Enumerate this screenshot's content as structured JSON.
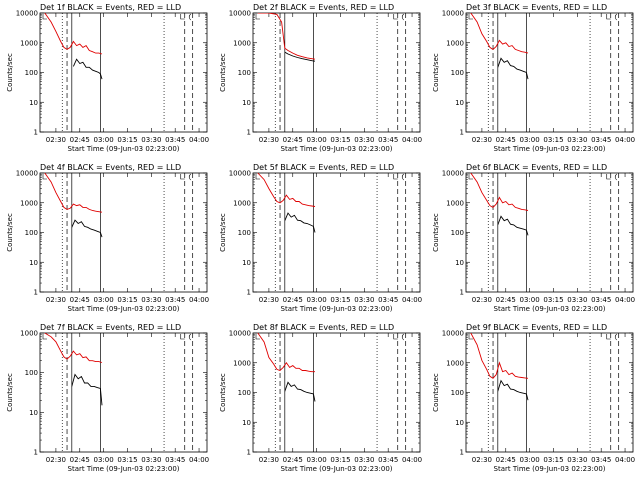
{
  "chart_data": [
    {
      "type": "line",
      "title": "Det 1f BLACK = Events, RED = LLD",
      "xlabel": "Start Time (09-Jun-03 02:23:00)",
      "ylabel": "Counts/sec",
      "yscale": "log",
      "ylim": [
        1,
        10000
      ],
      "xlim": [
        "02:20",
        "04:05"
      ],
      "x_ticks": [
        "02:30",
        "02:45",
        "03:00",
        "03:15",
        "03:30",
        "03:45",
        "04:00"
      ],
      "y_ticks": [
        "1",
        "10",
        "100",
        "1000",
        "10000"
      ],
      "markers": {
        "dotted": [
          "02:34",
          "03:38"
        ],
        "dashed": [
          "02:37",
          "03:51",
          "03:56"
        ],
        "solid": [
          "02:40",
          "02:58"
        ]
      },
      "series": [
        {
          "color": "#e00000",
          "x": [
            "02:23",
            "02:27",
            "02:30",
            "02:33",
            "02:35",
            "02:37",
            "02:39",
            "02:41",
            "02:43",
            "02:45",
            "02:47",
            "02:49",
            "02:51",
            "02:53",
            "02:55",
            "02:57",
            "02:59"
          ],
          "values": [
            10000,
            5000,
            2400,
            1100,
            700,
            600,
            700,
            1100,
            800,
            900,
            700,
            800,
            550,
            500,
            450,
            450,
            420
          ]
        },
        {
          "color": "#000000",
          "x": [
            "02:41",
            "02:43",
            "02:45",
            "02:47",
            "02:49",
            "02:51",
            "02:53",
            "02:55",
            "02:57",
            "02:58",
            "02:59"
          ],
          "values": [
            160,
            280,
            200,
            220,
            150,
            150,
            120,
            110,
            100,
            90,
            60
          ]
        }
      ]
    },
    {
      "type": "line",
      "title": "Det 2f BLACK = Events, RED = LLD",
      "xlabel": "Start Time (09-Jun-03 02:23:00)",
      "ylabel": "Counts/sec",
      "yscale": "log",
      "ylim": [
        1,
        10000
      ],
      "xlim": [
        "02:20",
        "04:05"
      ],
      "x_ticks": [
        "02:30",
        "02:45",
        "03:00",
        "03:15",
        "03:30",
        "03:45",
        "04:00"
      ],
      "y_ticks": [
        "1",
        "10",
        "100",
        "1000",
        "10000"
      ],
      "markers": {
        "dotted": [
          "02:34",
          "03:38"
        ],
        "dashed": [
          "02:37",
          "03:51",
          "03:56"
        ],
        "solid": [
          "02:40",
          "02:58"
        ]
      },
      "series": [
        {
          "color": "#e00000",
          "x": [
            "02:23",
            "02:30",
            "02:35",
            "02:38",
            "02:40",
            "02:42",
            "02:45",
            "02:48",
            "02:51",
            "02:54",
            "02:57",
            "02:59"
          ],
          "values": [
            10000,
            10000,
            9000,
            5000,
            650,
            550,
            450,
            380,
            340,
            310,
            290,
            280
          ]
        },
        {
          "color": "#000000",
          "x": [
            "02:40",
            "02:42",
            "02:45",
            "02:48",
            "02:51",
            "02:54",
            "02:57",
            "02:59"
          ],
          "values": [
            480,
            420,
            360,
            320,
            290,
            270,
            250,
            240
          ]
        }
      ]
    },
    {
      "type": "line",
      "title": "Det 3f BLACK = Events, RED = LLD",
      "xlabel": "Start Time (09-Jun-03 02:23:00)",
      "ylabel": "Counts/sec",
      "yscale": "log",
      "ylim": [
        1,
        10000
      ],
      "xlim": [
        "02:20",
        "04:05"
      ],
      "x_ticks": [
        "02:30",
        "02:45",
        "03:00",
        "03:15",
        "03:30",
        "03:45",
        "04:00"
      ],
      "y_ticks": [
        "1",
        "10",
        "100",
        "1000",
        "10000"
      ],
      "markers": {
        "dotted": [
          "02:34",
          "03:38"
        ],
        "dashed": [
          "02:37",
          "03:51",
          "03:56"
        ],
        "solid": [
          "02:40",
          "02:58"
        ]
      },
      "series": [
        {
          "color": "#e00000",
          "x": [
            "02:23",
            "02:27",
            "02:30",
            "02:33",
            "02:35",
            "02:37",
            "02:39",
            "02:41",
            "02:43",
            "02:45",
            "02:47",
            "02:49",
            "02:51",
            "02:53",
            "02:55",
            "02:57",
            "02:59"
          ],
          "values": [
            10000,
            5000,
            2000,
            1100,
            700,
            600,
            750,
            1200,
            900,
            1000,
            750,
            800,
            600,
            550,
            500,
            480,
            450
          ]
        },
        {
          "color": "#000000",
          "x": [
            "02:40",
            "02:42",
            "02:44",
            "02:46",
            "02:48",
            "02:50",
            "02:52",
            "02:54",
            "02:56",
            "02:58",
            "02:59"
          ],
          "values": [
            150,
            300,
            220,
            250,
            170,
            160,
            130,
            120,
            110,
            100,
            60
          ]
        }
      ]
    },
    {
      "type": "line",
      "title": "Det 4f BLACK = Events, RED = LLD",
      "xlabel": "Start Time (09-Jun-03 02:23:00)",
      "ylabel": "Counts/sec",
      "yscale": "log",
      "ylim": [
        1,
        10000
      ],
      "xlim": [
        "02:20",
        "04:05"
      ],
      "x_ticks": [
        "02:30",
        "02:45",
        "03:00",
        "03:15",
        "03:30",
        "03:45",
        "04:00"
      ],
      "y_ticks": [
        "1",
        "10",
        "100",
        "1000",
        "10000"
      ],
      "markers": {
        "dotted": [
          "02:34",
          "03:38"
        ],
        "dashed": [
          "02:37",
          "03:51",
          "03:56"
        ],
        "solid": [
          "02:40",
          "02:58"
        ]
      },
      "series": [
        {
          "color": "#e00000",
          "x": [
            "02:23",
            "02:27",
            "02:30",
            "02:33",
            "02:35",
            "02:37",
            "02:39",
            "02:41",
            "02:43",
            "02:45",
            "02:47",
            "02:49",
            "02:51",
            "02:53",
            "02:55",
            "02:57",
            "02:59"
          ],
          "values": [
            10000,
            5000,
            2200,
            1100,
            700,
            600,
            650,
            900,
            800,
            850,
            700,
            700,
            600,
            550,
            520,
            500,
            480
          ]
        },
        {
          "color": "#000000",
          "x": [
            "02:40",
            "02:42",
            "02:44",
            "02:46",
            "02:48",
            "02:50",
            "02:52",
            "02:54",
            "02:56",
            "02:58",
            "02:59"
          ],
          "values": [
            150,
            260,
            200,
            230,
            160,
            150,
            130,
            120,
            110,
            100,
            70
          ]
        }
      ]
    },
    {
      "type": "line",
      "title": "Det 5f BLACK = Events, RED = LLD",
      "xlabel": "Start Time (09-Jun-03 02:23:00)",
      "ylabel": "Counts/sec",
      "yscale": "log",
      "ylim": [
        1,
        10000
      ],
      "xlim": [
        "02:20",
        "04:05"
      ],
      "x_ticks": [
        "02:30",
        "02:45",
        "03:00",
        "03:15",
        "03:30",
        "03:45",
        "04:00"
      ],
      "y_ticks": [
        "1",
        "10",
        "100",
        "1000",
        "10000"
      ],
      "markers": {
        "dotted": [
          "02:34",
          "03:38"
        ],
        "dashed": [
          "02:37",
          "03:51",
          "03:56"
        ],
        "solid": [
          "02:40",
          "02:58"
        ]
      },
      "series": [
        {
          "color": "#e00000",
          "x": [
            "02:23",
            "02:27",
            "02:30",
            "02:33",
            "02:35",
            "02:37",
            "02:39",
            "02:41",
            "02:43",
            "02:45",
            "02:47",
            "02:49",
            "02:51",
            "02:53",
            "02:55",
            "02:57",
            "02:59"
          ],
          "values": [
            10000,
            6000,
            3000,
            1600,
            1100,
            1000,
            1200,
            1800,
            1300,
            1400,
            1100,
            1100,
            900,
            850,
            800,
            780,
            750
          ]
        },
        {
          "color": "#000000",
          "x": [
            "02:40",
            "02:42",
            "02:44",
            "02:46",
            "02:48",
            "02:50",
            "02:52",
            "02:54",
            "02:56",
            "02:58",
            "02:59"
          ],
          "values": [
            250,
            450,
            330,
            380,
            260,
            250,
            210,
            200,
            180,
            160,
            100
          ]
        }
      ]
    },
    {
      "type": "line",
      "title": "Det 6f BLACK = Events, RED = LLD",
      "xlabel": "Start Time (09-Jun-03 02:23:00)",
      "ylabel": "Counts/sec",
      "yscale": "log",
      "ylim": [
        1,
        10000
      ],
      "xlim": [
        "02:20",
        "04:05"
      ],
      "x_ticks": [
        "02:30",
        "02:45",
        "03:00",
        "03:15",
        "03:30",
        "03:45",
        "04:00"
      ],
      "y_ticks": [
        "1",
        "10",
        "100",
        "1000",
        "10000"
      ],
      "markers": {
        "dotted": [
          "02:34",
          "03:38"
        ],
        "dashed": [
          "02:37",
          "03:51",
          "03:56"
        ],
        "solid": [
          "02:40",
          "02:58"
        ]
      },
      "series": [
        {
          "color": "#e00000",
          "x": [
            "02:23",
            "02:27",
            "02:30",
            "02:33",
            "02:35",
            "02:37",
            "02:39",
            "02:41",
            "02:43",
            "02:45",
            "02:47",
            "02:49",
            "02:51",
            "02:53",
            "02:55",
            "02:57",
            "02:59"
          ],
          "values": [
            10000,
            5000,
            2200,
            1200,
            800,
            700,
            900,
            1500,
            1000,
            1100,
            850,
            900,
            700,
            650,
            600,
            580,
            550
          ]
        },
        {
          "color": "#000000",
          "x": [
            "02:40",
            "02:42",
            "02:44",
            "02:46",
            "02:48",
            "02:50",
            "02:52",
            "02:54",
            "02:56",
            "02:58",
            "02:59"
          ],
          "values": [
            180,
            350,
            250,
            280,
            190,
            180,
            150,
            140,
            130,
            120,
            80
          ]
        }
      ]
    },
    {
      "type": "line",
      "title": "Det 7f BLACK = Events, RED = LLD",
      "xlabel": "Start Time (09-Jun-03 02:23:00)",
      "ylabel": "Counts/sec",
      "yscale": "log",
      "ylim": [
        1,
        1000
      ],
      "xlim": [
        "02:20",
        "04:05"
      ],
      "x_ticks": [
        "02:30",
        "02:45",
        "03:00",
        "03:15",
        "03:30",
        "03:45",
        "04:00"
      ],
      "y_ticks": [
        "1",
        "10",
        "100",
        "1000"
      ],
      "markers": {
        "dotted": [
          "02:34",
          "03:38"
        ],
        "dashed": [
          "02:37",
          "03:51",
          "03:56"
        ],
        "solid": [
          "02:40",
          "02:58"
        ]
      },
      "series": [
        {
          "color": "#e00000",
          "x": [
            "02:23",
            "02:27",
            "02:30",
            "02:33",
            "02:35",
            "02:37",
            "02:39",
            "02:41",
            "02:43",
            "02:45",
            "02:47",
            "02:49",
            "02:51",
            "02:53",
            "02:55",
            "02:57",
            "02:59"
          ],
          "values": [
            1000,
            800,
            600,
            350,
            250,
            220,
            260,
            350,
            280,
            300,
            240,
            250,
            200,
            200,
            190,
            190,
            180
          ]
        },
        {
          "color": "#000000",
          "x": [
            "02:40",
            "02:42",
            "02:44",
            "02:46",
            "02:48",
            "02:50",
            "02:52",
            "02:54",
            "02:56",
            "02:58",
            "02:59"
          ],
          "values": [
            45,
            90,
            70,
            80,
            55,
            55,
            45,
            45,
            42,
            40,
            15
          ]
        }
      ]
    },
    {
      "type": "line",
      "title": "Det 8f BLACK = Events, RED = LLD",
      "xlabel": "Start Time (09-Jun-03 02:23:00)",
      "ylabel": "Counts/sec",
      "yscale": "log",
      "ylim": [
        1,
        10000
      ],
      "xlim": [
        "02:20",
        "04:05"
      ],
      "x_ticks": [
        "02:30",
        "02:45",
        "03:00",
        "03:15",
        "03:30",
        "03:45",
        "04:00"
      ],
      "y_ticks": [
        "1",
        "10",
        "100",
        "1000",
        "10000"
      ],
      "markers": {
        "dotted": [
          "02:34",
          "03:38"
        ],
        "dashed": [
          "02:37",
          "03:51",
          "03:56"
        ],
        "solid": [
          "02:40",
          "02:58"
        ]
      },
      "series": [
        {
          "color": "#e00000",
          "x": [
            "02:23",
            "02:27",
            "02:30",
            "02:33",
            "02:35",
            "02:37",
            "02:39",
            "02:41",
            "02:43",
            "02:45",
            "02:47",
            "02:49",
            "02:51",
            "02:53",
            "02:55",
            "02:57",
            "02:59"
          ],
          "values": [
            10000,
            5000,
            1500,
            900,
            600,
            550,
            700,
            1000,
            700,
            800,
            650,
            650,
            550,
            550,
            520,
            500,
            500
          ]
        },
        {
          "color": "#000000",
          "x": [
            "02:40",
            "02:42",
            "02:44",
            "02:46",
            "02:48",
            "02:50",
            "02:52",
            "02:54",
            "02:56",
            "02:58",
            "02:59"
          ],
          "values": [
            110,
            220,
            160,
            180,
            130,
            125,
            110,
            100,
            95,
            90,
            50
          ]
        }
      ]
    },
    {
      "type": "line",
      "title": "Det 9f BLACK = Events, RED = LLD",
      "xlabel": "Start Time (09-Jun-03 02:23:00)",
      "ylabel": "Counts/sec",
      "yscale": "log",
      "ylim": [
        1,
        10000
      ],
      "xlim": [
        "02:20",
        "04:05"
      ],
      "x_ticks": [
        "02:30",
        "02:45",
        "03:00",
        "03:15",
        "03:30",
        "03:45",
        "04:00"
      ],
      "y_ticks": [
        "1",
        "10",
        "100",
        "1000",
        "10000"
      ],
      "markers": {
        "dotted": [
          "02:34",
          "03:38"
        ],
        "dashed": [
          "02:37",
          "03:51",
          "03:56"
        ],
        "solid": [
          "02:40",
          "02:58"
        ]
      },
      "series": [
        {
          "color": "#e00000",
          "x": [
            "02:23",
            "02:27",
            "02:30",
            "02:33",
            "02:35",
            "02:37",
            "02:39",
            "02:41",
            "02:43",
            "02:45",
            "02:47",
            "02:49",
            "02:51",
            "02:53",
            "02:55",
            "02:57",
            "02:59"
          ],
          "values": [
            10000,
            4000,
            1200,
            600,
            350,
            300,
            400,
            1000,
            500,
            550,
            400,
            450,
            350,
            330,
            320,
            310,
            300
          ]
        },
        {
          "color": "#000000",
          "x": [
            "02:40",
            "02:42",
            "02:44",
            "02:46",
            "02:48",
            "02:50",
            "02:52",
            "02:54",
            "02:56",
            "02:58",
            "02:59"
          ],
          "values": [
            110,
            250,
            170,
            190,
            130,
            125,
            110,
            100,
            95,
            90,
            55
          ]
        }
      ]
    }
  ]
}
